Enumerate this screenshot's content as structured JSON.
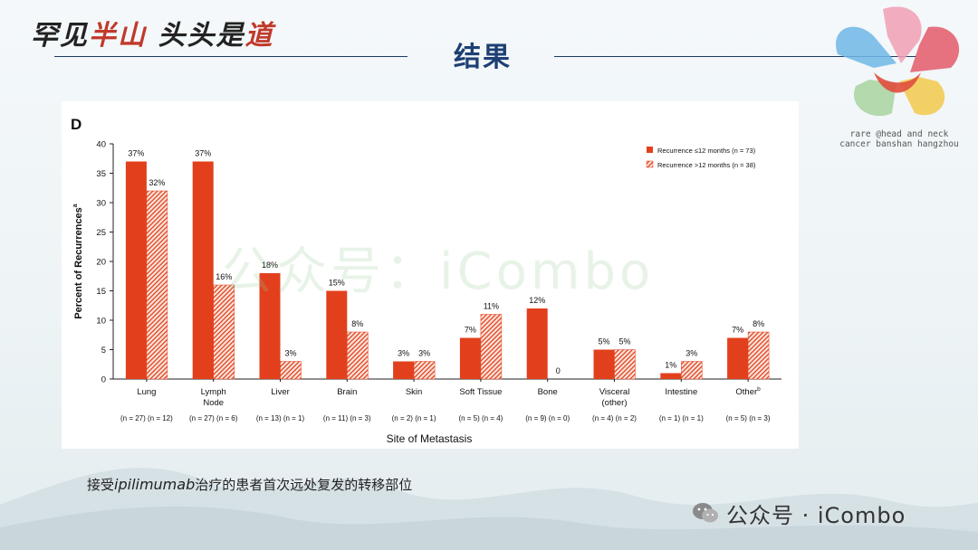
{
  "header": {
    "slogan_prefix": "罕见",
    "slogan_mid": "半山",
    "slogan_suffix": "头头是",
    "slogan_end": "道",
    "title": "结果"
  },
  "logo": {
    "line1": "rare @head and neck",
    "line2": "cancer banshan hangzhou"
  },
  "watermark": "公众号：iCombo",
  "caption": {
    "prefix": "接受",
    "drug": "ipilimumab",
    "suffix": "治疗的患者首次远处复发的转移部位"
  },
  "brand": {
    "icon": "wechat-icon",
    "text": "公众号 · iCombo"
  },
  "colors": {
    "bar_primary": "#e2401c",
    "bar_pattern_fill": "#f4a38a",
    "title_blue": "#1d3f73",
    "rule": "#1f3a66"
  },
  "chart_data": {
    "type": "bar",
    "panel_label": "D",
    "title": "",
    "xlabel": "Site of Metastasis",
    "ylabel": "Percent of Recurrences",
    "ylabel_superscript": "a",
    "ylim": [
      0,
      40
    ],
    "yticks": [
      0,
      5,
      10,
      15,
      20,
      25,
      30,
      35,
      40
    ],
    "legend_position": "top-right",
    "categories": [
      {
        "label": "Lung",
        "label2": "",
        "sup": "",
        "n": "(n = 27) (n = 12)"
      },
      {
        "label": "Lymph",
        "label2": "Node",
        "sup": "",
        "n": "(n = 27) (n = 6)"
      },
      {
        "label": "Liver",
        "label2": "",
        "sup": "",
        "n": "(n = 13) (n = 1)"
      },
      {
        "label": "Brain",
        "label2": "",
        "sup": "",
        "n": "(n = 11) (n = 3)"
      },
      {
        "label": "Skin",
        "label2": "",
        "sup": "",
        "n": "(n = 2) (n = 1)"
      },
      {
        "label": "Soft Tissue",
        "label2": "",
        "sup": "",
        "n": "(n = 5) (n = 4)"
      },
      {
        "label": "Bone",
        "label2": "",
        "sup": "",
        "n": "(n = 9) (n = 0)"
      },
      {
        "label": "Visceral",
        "label2": "(other)",
        "sup": "",
        "n": "(n = 4) (n = 2)"
      },
      {
        "label": "Intestine",
        "label2": "",
        "sup": "",
        "n": "(n = 1) (n = 1)"
      },
      {
        "label": "Other",
        "label2": "",
        "sup": "b",
        "n": "(n = 5) (n = 3)"
      }
    ],
    "series": [
      {
        "name": "Recurrence ≤12 months (n = 73)",
        "style": "solid",
        "values": [
          37,
          37,
          18,
          15,
          3,
          7,
          12,
          5,
          1,
          7
        ],
        "labels": [
          "37%",
          "37%",
          "18%",
          "15%",
          "3%",
          "7%",
          "12%",
          "5%",
          "1%",
          "7%"
        ]
      },
      {
        "name": "Recurrence >12 months (n = 38)",
        "style": "patterned",
        "values": [
          32,
          16,
          3,
          8,
          3,
          11,
          0,
          5,
          3,
          8
        ],
        "labels": [
          "32%",
          "16%",
          "3%",
          "8%",
          "3%",
          "11%",
          "0",
          "5%",
          "3%",
          "8%"
        ]
      }
    ]
  }
}
